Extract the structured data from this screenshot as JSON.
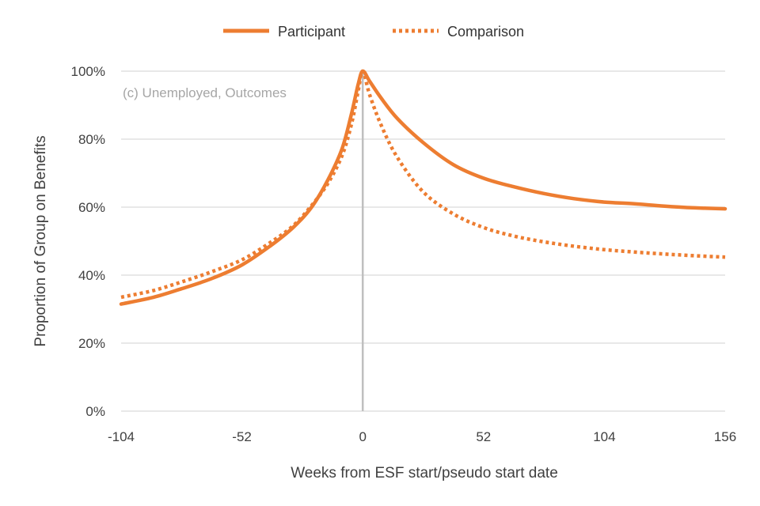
{
  "chart_data": {
    "type": "line",
    "title": "",
    "annotation": "(c) Unemployed, Outcomes",
    "xlabel": "Weeks from ESF start/pseudo start date",
    "ylabel": "Proportion of Group on Benefits",
    "xlim": [
      -104,
      156
    ],
    "ylim": [
      0,
      100
    ],
    "x_ticks": [
      "-104",
      "-52",
      "0",
      "52",
      "104",
      "156"
    ],
    "y_ticks": [
      "0%",
      "20%",
      "40%",
      "60%",
      "80%",
      "100%"
    ],
    "grid": "horizontal",
    "vertical_reference_line_x": 0,
    "legend_position": "top",
    "colors": {
      "series": "#ed7d31",
      "grid": "#d9d9d9",
      "reference_line": "#bfbfbf"
    },
    "series": [
      {
        "name": "Participant",
        "line_style": "solid",
        "points": [
          [
            -104,
            31.5
          ],
          [
            -90,
            33.5
          ],
          [
            -78,
            36
          ],
          [
            -65,
            39
          ],
          [
            -52,
            43
          ],
          [
            -40,
            48.5
          ],
          [
            -30,
            54
          ],
          [
            -22,
            60
          ],
          [
            -15,
            68
          ],
          [
            -9,
            77
          ],
          [
            -5,
            87
          ],
          [
            -2,
            96
          ],
          [
            0,
            100
          ],
          [
            3,
            97
          ],
          [
            8,
            92
          ],
          [
            15,
            86
          ],
          [
            26,
            79
          ],
          [
            39,
            72.5
          ],
          [
            52,
            68.5
          ],
          [
            65,
            66
          ],
          [
            78,
            64
          ],
          [
            91,
            62.5
          ],
          [
            104,
            61.5
          ],
          [
            117,
            61
          ],
          [
            130,
            60.3
          ],
          [
            143,
            59.8
          ],
          [
            156,
            59.5
          ]
        ]
      },
      {
        "name": "Comparison",
        "line_style": "dotted",
        "points": [
          [
            -104,
            33.5
          ],
          [
            -90,
            35.5
          ],
          [
            -78,
            38
          ],
          [
            -65,
            41
          ],
          [
            -52,
            44.5
          ],
          [
            -40,
            49.5
          ],
          [
            -30,
            54.5
          ],
          [
            -22,
            60.5
          ],
          [
            -15,
            67
          ],
          [
            -9,
            75
          ],
          [
            -5,
            84
          ],
          [
            -2,
            94
          ],
          [
            0,
            100
          ],
          [
            3,
            93
          ],
          [
            8,
            84
          ],
          [
            15,
            74.5
          ],
          [
            26,
            64.5
          ],
          [
            39,
            58
          ],
          [
            52,
            54
          ],
          [
            65,
            51.5
          ],
          [
            78,
            49.8
          ],
          [
            91,
            48.5
          ],
          [
            104,
            47.5
          ],
          [
            117,
            46.8
          ],
          [
            130,
            46.2
          ],
          [
            143,
            45.7
          ],
          [
            156,
            45.3
          ]
        ]
      }
    ]
  }
}
